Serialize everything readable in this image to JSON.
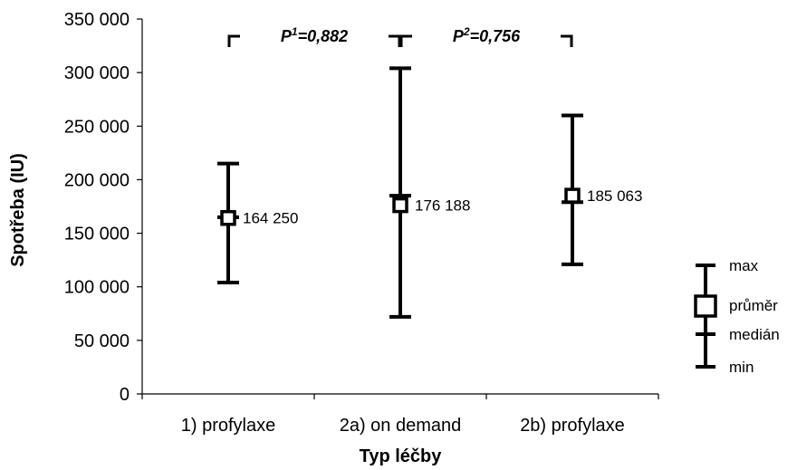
{
  "chart_data": {
    "type": "error-bar",
    "xlabel": "Typ léčby",
    "ylabel": "Spotřeba (IU)",
    "ylim": [
      0,
      350000
    ],
    "yticks": [
      0,
      50000,
      100000,
      150000,
      200000,
      250000,
      300000,
      350000
    ],
    "ytick_labels": [
      "0",
      "50 000",
      "100 000",
      "150 000",
      "200 000",
      "250 000",
      "300 000",
      "350 000"
    ],
    "categories": [
      "1) profylaxe",
      "2a) on demand",
      "2b) profylaxe"
    ],
    "groups": [
      {
        "category": "1) profylaxe",
        "min": 104000,
        "median": 165000,
        "mean": 164250,
        "max": 215000,
        "mean_label": "164 250"
      },
      {
        "category": "2a) on demand",
        "min": 72000,
        "median": 185000,
        "mean": 176188,
        "max": 304000,
        "mean_label": "176 188"
      },
      {
        "category": "2b) profylaxe",
        "min": 121000,
        "median": 179000,
        "mean": 185063,
        "max": 260000,
        "mean_label": "185 063"
      }
    ],
    "comparisons": [
      {
        "from": 0,
        "to": 1,
        "label_main": "P",
        "label_sup": "1",
        "label_rest": "=0,882"
      },
      {
        "from": 1,
        "to": 2,
        "label_main": "P",
        "label_sup": "2",
        "label_rest": "=0,756"
      }
    ],
    "legend": {
      "placement": "right",
      "items": [
        "max",
        "průměr",
        "medián",
        "min"
      ]
    }
  }
}
